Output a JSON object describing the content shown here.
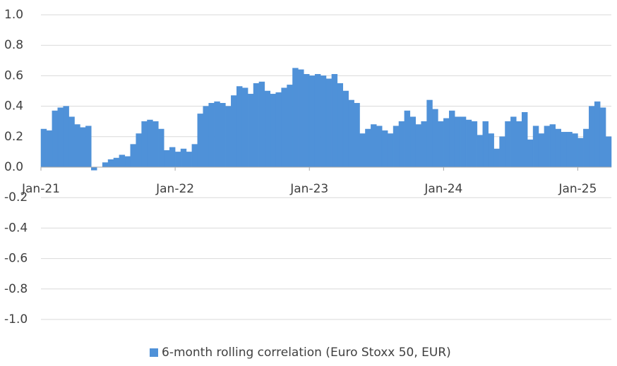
{
  "chart_data": {
    "type": "bar",
    "categories": [
      "Jan-21",
      null,
      null,
      null,
      null,
      null,
      null,
      null,
      null,
      null,
      null,
      null,
      null,
      null,
      null,
      null,
      null,
      null,
      null,
      null,
      null,
      null,
      null,
      null,
      "Jan-22",
      null,
      null,
      null,
      null,
      null,
      null,
      null,
      null,
      null,
      null,
      null,
      null,
      null,
      null,
      null,
      null,
      null,
      null,
      null,
      null,
      null,
      null,
      null,
      "Jan-23",
      null,
      null,
      null,
      null,
      null,
      null,
      null,
      null,
      null,
      null,
      null,
      null,
      null,
      null,
      null,
      null,
      null,
      null,
      null,
      null,
      null,
      null,
      null,
      "Jan-24",
      null,
      null,
      null,
      null,
      null,
      null,
      null,
      null,
      null,
      null,
      null,
      null,
      null,
      null,
      null,
      null,
      null,
      null,
      null,
      null,
      null,
      null,
      null,
      "Jan-25",
      null,
      null,
      null,
      null,
      null
    ],
    "series": [
      {
        "name": "6-month rolling correlation (Euro Stoxx 50, EUR)",
        "color": "#4f91d8",
        "values": [
          0.25,
          0.24,
          0.37,
          0.39,
          0.4,
          0.33,
          0.28,
          0.26,
          0.27,
          -0.02,
          0.0,
          0.03,
          0.05,
          0.06,
          0.08,
          0.07,
          0.15,
          0.22,
          0.3,
          0.31,
          0.3,
          0.25,
          0.11,
          0.13,
          0.1,
          0.12,
          0.1,
          0.15,
          0.35,
          0.4,
          0.42,
          0.43,
          0.42,
          0.4,
          0.47,
          0.53,
          0.52,
          0.48,
          0.55,
          0.56,
          0.5,
          0.48,
          0.49,
          0.52,
          0.54,
          0.65,
          0.64,
          0.61,
          0.6,
          0.61,
          0.6,
          0.58,
          0.61,
          0.55,
          0.5,
          0.44,
          0.42,
          0.22,
          0.25,
          0.28,
          0.27,
          0.24,
          0.22,
          0.27,
          0.3,
          0.37,
          0.33,
          0.28,
          0.3,
          0.44,
          0.38,
          0.3,
          0.32,
          0.37,
          0.33,
          0.33,
          0.31,
          0.3,
          0.21,
          0.3,
          0.22,
          0.12,
          0.2,
          0.3,
          0.33,
          0.3,
          0.36,
          0.18,
          0.27,
          0.22,
          0.27,
          0.28,
          0.25,
          0.23,
          0.23,
          0.22,
          0.19,
          0.25,
          0.4,
          0.43,
          0.39,
          0.2
        ]
      }
    ],
    "ylim": [
      -1,
      1
    ],
    "yticks": [
      {
        "value": 1,
        "label": "1.0"
      },
      0.8,
      0.6,
      0.4,
      0.2,
      {
        "value": 0,
        "label": "0.0"
      },
      -0.2,
      -0.4,
      -0.6,
      -0.8,
      {
        "value": -1,
        "label": "-1.0"
      }
    ],
    "grid": true,
    "legend": "bottom"
  }
}
